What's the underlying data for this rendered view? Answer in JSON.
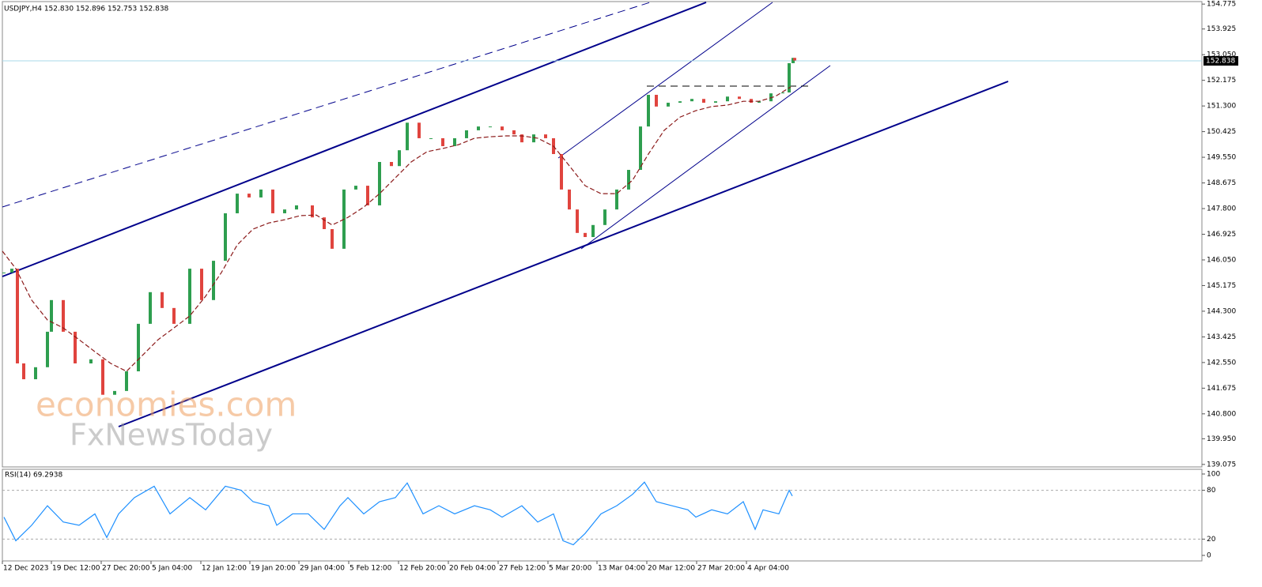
{
  "chart_data": [
    {
      "type": "candle-line",
      "title": "USDJPY,H4  152.830 152.896 152.753 152.838",
      "xlim": [
        0,
        1517
      ],
      "ylim": [
        138.99,
        154.86
      ],
      "yticks": [
        {
          "value": 154.775,
          "label": "154.775"
        },
        {
          "value": 153.925,
          "label": "153.925"
        },
        {
          "value": 153.05,
          "label": "153.050"
        },
        {
          "value": 152.175,
          "label": "152.175"
        },
        {
          "value": 151.3,
          "label": "151.300"
        },
        {
          "value": 150.425,
          "label": "150.425"
        },
        {
          "value": 149.55,
          "label": "149.550"
        },
        {
          "value": 148.675,
          "label": "148.675"
        },
        {
          "value": 147.8,
          "label": "147.800"
        },
        {
          "value": 146.925,
          "label": "146.925"
        },
        {
          "value": 146.05,
          "label": "146.050"
        },
        {
          "value": 145.175,
          "label": "145.175"
        },
        {
          "value": 144.3,
          "label": "144.300"
        },
        {
          "value": 143.425,
          "label": "143.425"
        },
        {
          "value": 142.55,
          "label": "142.550"
        },
        {
          "value": 141.675,
          "label": "141.675"
        },
        {
          "value": 140.8,
          "label": "140.800"
        },
        {
          "value": 139.95,
          "label": "139.950"
        },
        {
          "value": 139.075,
          "label": "139.075"
        }
      ],
      "last_price": 152.838,
      "up_color": "#2e9e4f",
      "down_color": "#e0443e",
      "annotations": [
        "economies.com",
        "FxNewsToday"
      ],
      "series": [
        {
          "x": [
            2,
            12,
            19,
            27,
            42,
            57,
            62,
            77,
            92,
            112,
            127,
            142,
            157,
            172,
            187,
            202,
            217,
            237,
            252,
            267,
            282,
            297,
            312,
            327,
            342,
            357,
            372,
            392,
            407,
            417,
            432,
            447,
            462,
            477,
            492,
            502,
            512,
            527,
            542,
            557,
            572,
            587,
            602,
            617,
            632,
            647,
            657,
            672,
            687,
            697,
            707,
            717,
            727,
            737,
            747,
            762,
            777,
            792,
            807,
            817,
            827,
            842,
            857,
            872,
            887,
            902,
            917,
            932,
            947,
            957,
            972,
            987,
            995,
            1000,
            1002
          ],
          "values": [
            145.62,
            145.75,
            142.52,
            141.98,
            142.39,
            143.6,
            144.68,
            143.6,
            142.52,
            142.66,
            141.45,
            141.58,
            142.25,
            143.87,
            144.95,
            144.41,
            143.87,
            145.75,
            144.68,
            146.02,
            147.64,
            148.31,
            148.18,
            148.45,
            147.64,
            147.77,
            147.91,
            147.5,
            147.1,
            146.43,
            148.45,
            148.58,
            147.91,
            149.39,
            149.25,
            149.79,
            150.73,
            150.2,
            150.2,
            149.93,
            150.2,
            150.47,
            150.6,
            150.6,
            150.47,
            150.33,
            150.06,
            150.33,
            150.2,
            149.66,
            148.45,
            147.77,
            146.97,
            146.83,
            147.24,
            147.77,
            148.45,
            149.12,
            150.6,
            151.68,
            151.28,
            151.41,
            151.46,
            151.54,
            151.41,
            151.46,
            151.62,
            151.54,
            151.41,
            151.46,
            151.73,
            151.76,
            152.76,
            152.94,
            152.85
          ]
        },
        {
          "color": "#8b1a1a",
          "x": [
            0,
            17,
            37,
            57,
            77,
            97,
            117,
            137,
            157,
            177,
            197,
            217,
            237,
            257,
            277,
            297,
            317,
            337,
            357,
            377,
            397,
            417,
            437,
            457,
            477,
            497,
            517,
            537,
            557,
            577,
            597,
            617,
            637,
            657,
            677,
            697,
            717,
            737,
            757,
            777,
            797,
            817,
            837,
            857,
            877,
            897,
            917,
            937,
            957,
            977,
            997
          ],
          "values": [
            146.35,
            145.75,
            144.68,
            144.0,
            143.73,
            143.33,
            142.92,
            142.52,
            142.25,
            142.79,
            143.33,
            143.73,
            144.14,
            144.81,
            145.62,
            146.56,
            147.1,
            147.31,
            147.42,
            147.56,
            147.58,
            147.24,
            147.5,
            147.85,
            148.31,
            148.85,
            149.39,
            149.74,
            149.85,
            149.98,
            150.2,
            150.25,
            150.28,
            150.28,
            150.2,
            149.93,
            149.26,
            148.58,
            148.31,
            148.31,
            148.77,
            149.66,
            150.47,
            150.92,
            151.14,
            151.28,
            151.33,
            151.46,
            151.46,
            151.62,
            151.95
          ]
        }
      ]
    },
    {
      "type": "line",
      "title": "RSI(14) 69.2938",
      "xlim": [
        0,
        1517
      ],
      "ylim": [
        -6.8,
        105.8
      ],
      "yticks": [
        100,
        80,
        20,
        0
      ],
      "levels": [
        80,
        20
      ],
      "xticks": [
        {
          "value": 0,
          "label": "12 Dec 2023"
        },
        {
          "value": 62,
          "label": "19 Dec 12:00"
        },
        {
          "value": 125,
          "label": "27 Dec 20:00"
        },
        {
          "value": 188,
          "label": "5 Jan 04:00"
        },
        {
          "value": 251,
          "label": "12 Jan 12:00"
        },
        {
          "value": 313,
          "label": "19 Jan 20:00"
        },
        {
          "value": 375,
          "label": "29 Jan 04:00"
        },
        {
          "value": 438,
          "label": "5 Feb 12:00"
        },
        {
          "value": 501,
          "label": "12 Feb 20:00"
        },
        {
          "value": 564,
          "label": "20 Feb 04:00"
        },
        {
          "value": 627,
          "label": "27 Feb 12:00"
        },
        {
          "value": 690,
          "label": "5 Mar 20:00"
        },
        {
          "value": 752,
          "label": "13 Mar 04:00"
        },
        {
          "value": 815,
          "label": "20 Mar 12:00"
        },
        {
          "value": 878,
          "label": "27 Mar 20:00"
        },
        {
          "value": 941,
          "label": "4 Apr 04:00"
        }
      ],
      "series": [
        {
          "color": "#1e90ff",
          "x": [
            2,
            17,
            37,
            57,
            77,
            97,
            117,
            132,
            147,
            167,
            192,
            212,
            237,
            257,
            282,
            302,
            317,
            337,
            347,
            367,
            387,
            407,
            427,
            437,
            457,
            477,
            497,
            512,
            532,
            552,
            572,
            597,
            617,
            632,
            657,
            677,
            697,
            709,
            722,
            737,
            757,
            777,
            797,
            812,
            827,
            847,
            867,
            877,
            897,
            917,
            937,
            952,
            962,
            982,
            995,
            999
          ],
          "values": [
            47,
            18,
            37,
            61,
            41,
            37,
            51,
            22,
            51,
            71,
            85,
            51,
            71,
            56,
            85,
            80,
            66,
            61,
            37,
            51,
            51,
            32,
            61,
            71,
            51,
            66,
            71,
            89,
            51,
            61,
            51,
            61,
            56,
            47,
            61,
            41,
            51,
            18,
            13,
            27,
            51,
            61,
            75,
            90,
            66,
            61,
            56,
            47,
            56,
            51,
            66,
            32,
            56,
            51,
            80,
            73
          ]
        }
      ]
    }
  ]
}
